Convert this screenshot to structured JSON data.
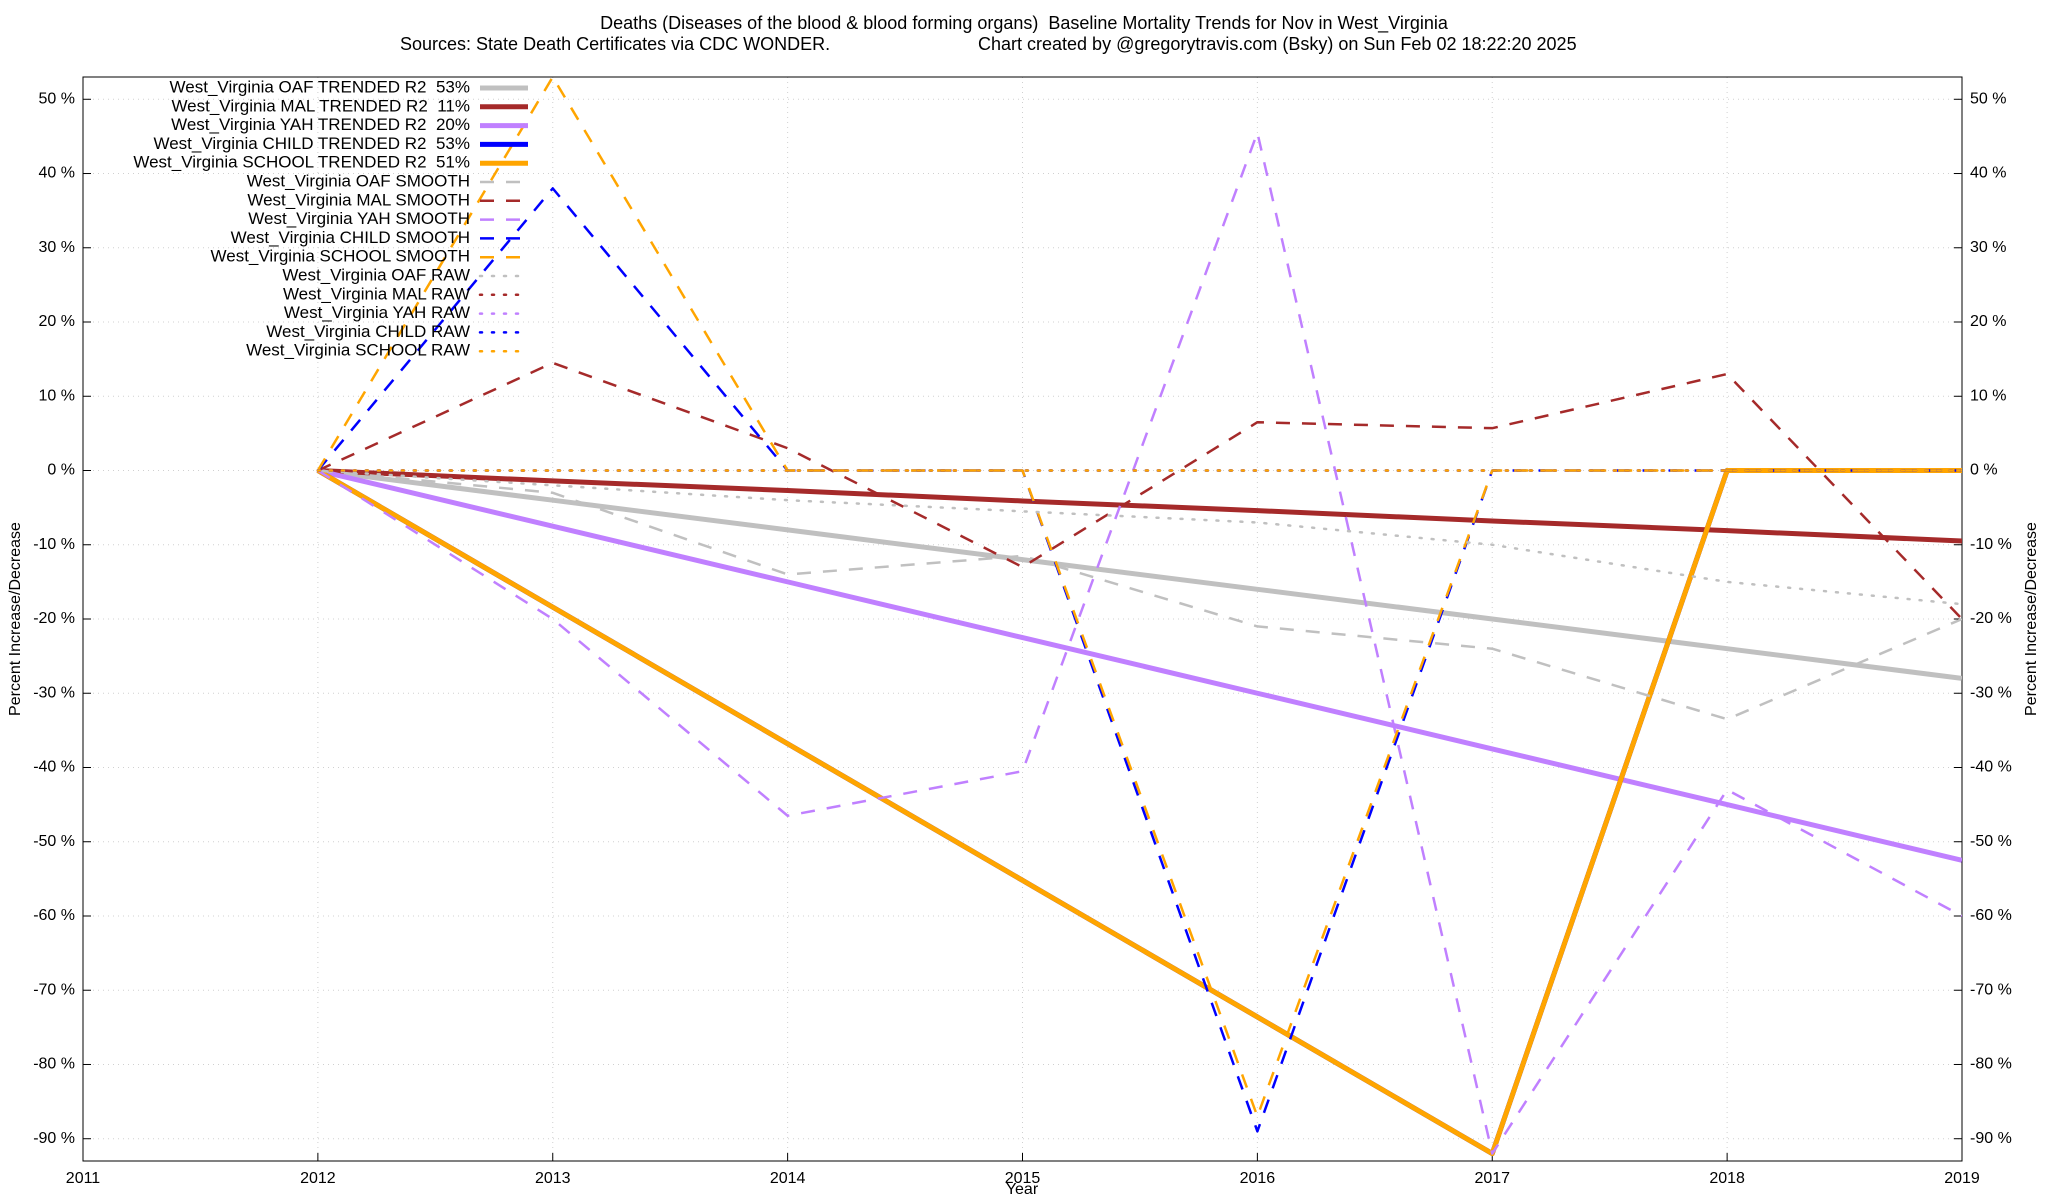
{
  "chart_data": {
    "type": "line",
    "title": "Deaths (Diseases of the blood & blood forming organs)  Baseline Mortality Trends for Nov in West_Virginia",
    "subtitle": "Sources: State Death Certificates via CDC WONDER.",
    "credit": "Chart created by @gregorytravis.com (Bsky) on Sun Feb 02 18:22:20 2025",
    "xlabel": "Year",
    "ylabel": "Percent Increase/Decrease",
    "y2label": "Percent Increase/Decrease",
    "xlim": [
      2011,
      2019
    ],
    "xticks": [
      2011,
      2012,
      2013,
      2014,
      2015,
      2016,
      2017,
      2018,
      2019
    ],
    "ylim": [
      -93,
      53
    ],
    "yticks": [
      {
        "value": -90,
        "label": "-90 %"
      },
      {
        "value": -80,
        "label": "-80 %"
      },
      {
        "value": -70,
        "label": "-70 %"
      },
      {
        "value": -60,
        "label": "-60 %"
      },
      {
        "value": -50,
        "label": "-50 %"
      },
      {
        "value": -40,
        "label": "-40 %"
      },
      {
        "value": -30,
        "label": "-30 %"
      },
      {
        "value": -20,
        "label": "-20 %"
      },
      {
        "value": -10,
        "label": "-10 %"
      },
      {
        "value": 0,
        "label": "0 %"
      },
      {
        "value": 10,
        "label": "10 %"
      },
      {
        "value": 20,
        "label": "20 %"
      },
      {
        "value": 30,
        "label": "30 %"
      },
      {
        "value": 40,
        "label": "40 %"
      },
      {
        "value": 50,
        "label": "50 %"
      }
    ],
    "y2lim": [
      -93,
      53
    ],
    "y2ticks": [
      {
        "value": -90,
        "label": "-90 %"
      },
      {
        "value": -80,
        "label": "-80 %"
      },
      {
        "value": -70,
        "label": "-70 %"
      },
      {
        "value": -60,
        "label": "-60 %"
      },
      {
        "value": -50,
        "label": "-50 %"
      },
      {
        "value": -40,
        "label": "-40 %"
      },
      {
        "value": -30,
        "label": "-30 %"
      },
      {
        "value": -20,
        "label": "-20 %"
      },
      {
        "value": -10,
        "label": "-10 %"
      },
      {
        "value": 0,
        "label": "0 %"
      },
      {
        "value": 10,
        "label": "10 %"
      },
      {
        "value": 20,
        "label": "20 %"
      },
      {
        "value": 30,
        "label": "30 %"
      },
      {
        "value": 40,
        "label": "40 %"
      },
      {
        "value": 50,
        "label": "50 %"
      }
    ],
    "grid": true,
    "legend": "top-left",
    "x": [
      2012,
      2013,
      2014,
      2015,
      2016,
      2017,
      2018,
      2019
    ],
    "series": [
      {
        "name": "West_Virginia OAF TRENDED R2  53%",
        "color": "#c0c0c0",
        "style": "solid",
        "values": [
          0,
          -4,
          -8,
          -12,
          -16,
          -20,
          -24,
          -28
        ]
      },
      {
        "name": "West_Virginia MAL TRENDED R2  11%",
        "color": "#a52a2a",
        "style": "solid",
        "values": [
          0,
          -1.4,
          -2.7,
          -4.1,
          -5.4,
          -6.8,
          -8.1,
          -9.5
        ]
      },
      {
        "name": "West_Virginia YAH TRENDED R2  20%",
        "color": "#c080ff",
        "style": "solid",
        "values": [
          0,
          -7.5,
          -15,
          -22.5,
          -30,
          -37.5,
          -45,
          -52.5
        ]
      },
      {
        "name": "West_Virginia CHILD TRENDED R2  53%",
        "color": "#0000ff",
        "style": "solid",
        "values": [
          0,
          -18.4,
          -36.8,
          -55.2,
          -73.6,
          -92,
          0,
          0
        ]
      },
      {
        "name": "West_Virginia SCHOOL TRENDED R2  51%",
        "color": "#ffa500",
        "style": "solid",
        "values": [
          0,
          -18.4,
          -36.8,
          -55.2,
          -73.6,
          -92,
          0,
          0
        ]
      },
      {
        "name": "West_Virginia OAF SMOOTH",
        "color": "#c0c0c0",
        "style": "dashed",
        "values": [
          0,
          -3,
          -14,
          -11.5,
          -21,
          -24,
          -33.5,
          -20
        ]
      },
      {
        "name": "West_Virginia MAL SMOOTH",
        "color": "#a52a2a",
        "style": "dashed",
        "values": [
          0,
          14.5,
          3,
          -13,
          6.5,
          5.7,
          13,
          -20
        ]
      },
      {
        "name": "West_Virginia YAH SMOOTH",
        "color": "#c080ff",
        "style": "dashed",
        "values": [
          0,
          -20,
          -46.5,
          -40.5,
          45.5,
          -92,
          -43,
          -60
        ]
      },
      {
        "name": "West_Virginia CHILD SMOOTH",
        "color": "#0000ff",
        "style": "dashed",
        "values": [
          0,
          38,
          0,
          0,
          -89,
          0,
          0,
          0
        ]
      },
      {
        "name": "West_Virginia SCHOOL SMOOTH",
        "color": "#ffa500",
        "style": "dashed",
        "values": [
          0,
          53,
          0,
          0,
          -87,
          0,
          0,
          0
        ]
      },
      {
        "name": "West_Virginia OAF RAW",
        "color": "#c0c0c0",
        "style": "dotted",
        "values": [
          0,
          -2,
          -4,
          -5.5,
          -7,
          -10,
          -15,
          -18
        ]
      },
      {
        "name": "West_Virginia MAL RAW",
        "color": "#a52a2a",
        "style": "dotted",
        "values": [
          0,
          0,
          0,
          0,
          0,
          0,
          0,
          0
        ]
      },
      {
        "name": "West_Virginia YAH RAW",
        "color": "#c080ff",
        "style": "dotted",
        "values": [
          0,
          0,
          0,
          0,
          0,
          0,
          0,
          0
        ]
      },
      {
        "name": "West_Virginia CHILD RAW",
        "color": "#0000ff",
        "style": "dotted",
        "values": [
          0,
          0,
          0,
          0,
          0,
          0,
          0,
          0
        ]
      },
      {
        "name": "West_Virginia SCHOOL RAW",
        "color": "#ffa500",
        "style": "dotted",
        "values": [
          0,
          0,
          0,
          0,
          0,
          0,
          0,
          0
        ]
      }
    ]
  }
}
